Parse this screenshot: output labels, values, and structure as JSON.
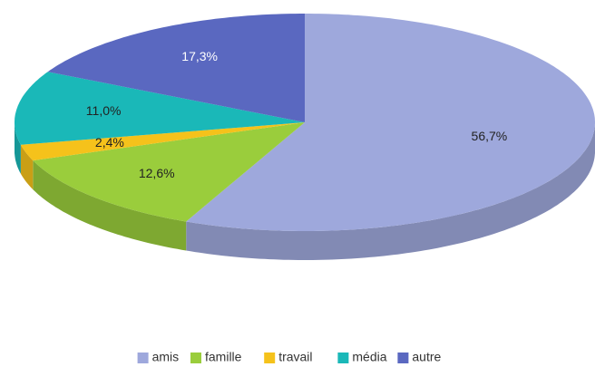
{
  "chart_data": {
    "type": "pie",
    "categories": [
      "amis",
      "famille",
      "travail",
      "média",
      "autre"
    ],
    "values": [
      56.7,
      12.6,
      2.4,
      11.0,
      17.3
    ],
    "value_labels": [
      "56,7%",
      "12,6%",
      "2,4%",
      "11,0%",
      "17,3%"
    ],
    "colors": [
      "#9ea8dc",
      "#9acd3c",
      "#f5c21b",
      "#1ab8b8",
      "#5a68c0"
    ],
    "label_colors": [
      "#222222",
      "#222222",
      "#222222",
      "#222222",
      "#ffffff"
    ],
    "legend": "bottom"
  }
}
